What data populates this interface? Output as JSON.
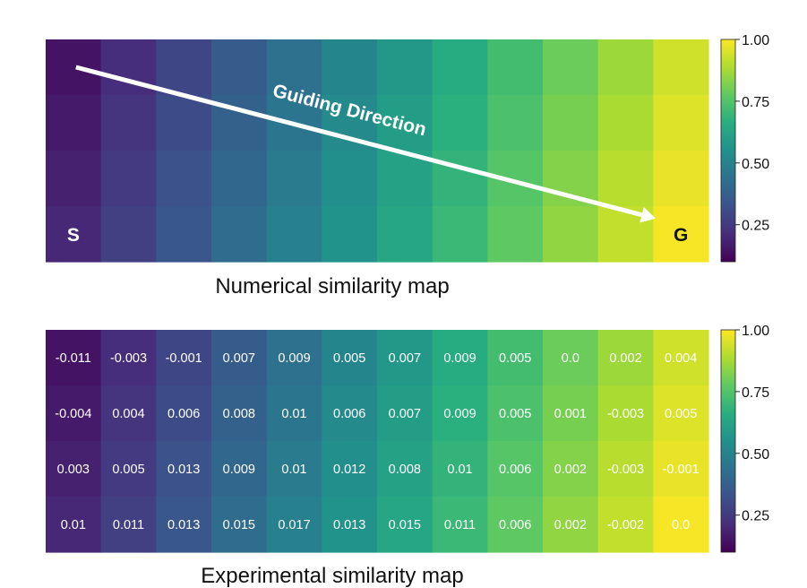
{
  "chart_data": [
    {
      "type": "heatmap",
      "title": "Numerical similarity map",
      "rows": 4,
      "cols": 12,
      "values": [
        [
          0.05,
          0.13,
          0.21,
          0.29,
          0.37,
          0.45,
          0.53,
          0.61,
          0.69,
          0.77,
          0.85,
          0.93
        ],
        [
          0.07,
          0.15,
          0.23,
          0.31,
          0.39,
          0.47,
          0.55,
          0.63,
          0.71,
          0.79,
          0.87,
          0.95
        ],
        [
          0.09,
          0.17,
          0.25,
          0.33,
          0.41,
          0.49,
          0.57,
          0.65,
          0.73,
          0.81,
          0.89,
          0.97
        ],
        [
          0.11,
          0.19,
          0.27,
          0.35,
          0.43,
          0.51,
          0.59,
          0.67,
          0.75,
          0.83,
          0.91,
          0.99
        ]
      ],
      "colorscale": "viridis",
      "colorbar": {
        "range": [
          0.1,
          1.0
        ],
        "ticks": [
          0.25,
          0.5,
          0.75,
          1.0
        ],
        "tick_labels": [
          "0.25",
          "0.50",
          "0.75",
          "1.00"
        ]
      },
      "annotations": {
        "start_label": "S",
        "goal_label": "G",
        "arrow_label": "Guiding Direction",
        "arrow_from": [
          0.5,
          0.5
        ],
        "arrow_to": [
          11.4,
          3.35
        ]
      }
    },
    {
      "type": "heatmap",
      "title": "Experimental similarity map",
      "rows": 4,
      "cols": 12,
      "values": [
        [
          0.05,
          0.13,
          0.21,
          0.29,
          0.37,
          0.45,
          0.53,
          0.61,
          0.69,
          0.77,
          0.85,
          0.93
        ],
        [
          0.07,
          0.15,
          0.23,
          0.31,
          0.39,
          0.47,
          0.55,
          0.63,
          0.71,
          0.79,
          0.87,
          0.95
        ],
        [
          0.09,
          0.17,
          0.25,
          0.33,
          0.41,
          0.49,
          0.57,
          0.65,
          0.73,
          0.81,
          0.89,
          0.97
        ],
        [
          0.11,
          0.19,
          0.27,
          0.35,
          0.43,
          0.51,
          0.59,
          0.67,
          0.75,
          0.83,
          0.91,
          0.99
        ]
      ],
      "cell_labels": [
        [
          "-0.011",
          "-0.003",
          "-0.001",
          "0.007",
          "0.009",
          "0.005",
          "0.007",
          "0.009",
          "0.005",
          "0.0",
          "0.002",
          "0.004"
        ],
        [
          "-0.004",
          "0.004",
          "0.006",
          "0.008",
          "0.01",
          "0.006",
          "0.007",
          "0.009",
          "0.005",
          "0.001",
          "-0.003",
          "0.005"
        ],
        [
          "0.003",
          "0.005",
          "0.013",
          "0.009",
          "0.01",
          "0.012",
          "0.008",
          "0.01",
          "0.006",
          "0.002",
          "-0.003",
          "-0.001"
        ],
        [
          "0.01",
          "0.011",
          "0.013",
          "0.015",
          "0.017",
          "0.013",
          "0.015",
          "0.011",
          "0.006",
          "0.002",
          "-0.002",
          "0.0"
        ]
      ],
      "colorscale": "viridis",
      "colorbar": {
        "range": [
          0.1,
          1.0
        ],
        "ticks": [
          0.25,
          0.5,
          0.75,
          1.0
        ],
        "tick_labels": [
          "0.25",
          "0.50",
          "0.75",
          "1.00"
        ]
      }
    }
  ]
}
